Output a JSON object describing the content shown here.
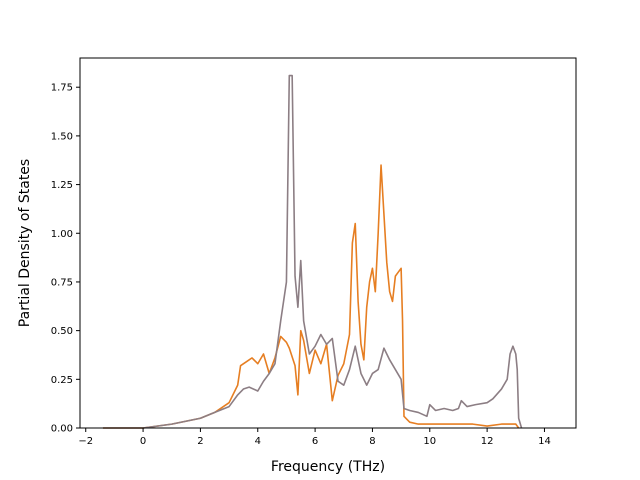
{
  "chart_data": {
    "type": "line",
    "title": "",
    "xlabel": "Frequency (THz)",
    "ylabel": "Partial Density of States",
    "xlim": [
      -2.2,
      15.1
    ],
    "ylim": [
      0.0,
      1.9
    ],
    "grid": false,
    "legend": "none",
    "xticks": [
      -2,
      0,
      2,
      4,
      6,
      8,
      10,
      12,
      14
    ],
    "xtick_labels": [
      "−2",
      "0",
      "2",
      "4",
      "6",
      "8",
      "10",
      "12",
      "14"
    ],
    "yticks": [
      0.0,
      0.25,
      0.5,
      0.75,
      1.0,
      1.25,
      1.5,
      1.75
    ],
    "ytick_labels": [
      "0.00",
      "0.25",
      "0.50",
      "0.75",
      "1.00",
      "1.25",
      "1.50",
      "1.75"
    ],
    "series": [
      {
        "color": "#e67e22",
        "x": [
          -1.4,
          0.0,
          1.0,
          2.0,
          2.5,
          3.0,
          3.3,
          3.4,
          3.6,
          3.8,
          4.0,
          4.2,
          4.4,
          4.6,
          4.8,
          5.0,
          5.1,
          5.3,
          5.4,
          5.5,
          5.6,
          5.8,
          6.0,
          6.2,
          6.4,
          6.6,
          6.8,
          7.0,
          7.2,
          7.3,
          7.4,
          7.5,
          7.6,
          7.7,
          7.8,
          7.9,
          8.0,
          8.1,
          8.2,
          8.3,
          8.4,
          8.5,
          8.6,
          8.7,
          8.8,
          8.9,
          9.0,
          9.05,
          9.1,
          9.3,
          9.6,
          10.0,
          10.5,
          11.0,
          11.5,
          12.0,
          12.5,
          12.8,
          13.0,
          13.1
        ],
        "y": [
          0.0,
          0.0,
          0.02,
          0.05,
          0.08,
          0.13,
          0.22,
          0.32,
          0.34,
          0.36,
          0.33,
          0.38,
          0.28,
          0.36,
          0.47,
          0.44,
          0.41,
          0.32,
          0.17,
          0.5,
          0.45,
          0.28,
          0.4,
          0.33,
          0.43,
          0.14,
          0.27,
          0.33,
          0.48,
          0.95,
          1.05,
          0.65,
          0.43,
          0.35,
          0.62,
          0.75,
          0.82,
          0.7,
          1.0,
          1.35,
          1.1,
          0.85,
          0.7,
          0.65,
          0.78,
          0.8,
          0.82,
          0.55,
          0.06,
          0.03,
          0.02,
          0.02,
          0.02,
          0.02,
          0.02,
          0.01,
          0.02,
          0.02,
          0.02,
          0.0
        ]
      },
      {
        "color": "#8c7e84",
        "x": [
          -1.4,
          0.0,
          1.0,
          2.0,
          2.5,
          3.0,
          3.3,
          3.5,
          3.7,
          4.0,
          4.2,
          4.4,
          4.6,
          4.8,
          5.0,
          5.1,
          5.2,
          5.3,
          5.4,
          5.5,
          5.6,
          5.8,
          6.0,
          6.2,
          6.4,
          6.6,
          6.8,
          7.0,
          7.2,
          7.4,
          7.6,
          7.8,
          8.0,
          8.2,
          8.4,
          8.6,
          8.8,
          9.0,
          9.1,
          9.3,
          9.6,
          9.9,
          10.0,
          10.2,
          10.5,
          10.8,
          11.0,
          11.1,
          11.3,
          11.6,
          12.0,
          12.2,
          12.5,
          12.7,
          12.8,
          12.9,
          13.0,
          13.05,
          13.1,
          13.2
        ],
        "y": [
          0.0,
          0.0,
          0.02,
          0.05,
          0.08,
          0.11,
          0.17,
          0.2,
          0.21,
          0.19,
          0.24,
          0.28,
          0.33,
          0.55,
          0.75,
          1.81,
          1.81,
          0.78,
          0.62,
          0.86,
          0.55,
          0.38,
          0.42,
          0.48,
          0.43,
          0.46,
          0.24,
          0.22,
          0.3,
          0.42,
          0.28,
          0.22,
          0.28,
          0.3,
          0.41,
          0.35,
          0.3,
          0.25,
          0.1,
          0.09,
          0.08,
          0.06,
          0.12,
          0.09,
          0.1,
          0.09,
          0.1,
          0.14,
          0.11,
          0.12,
          0.13,
          0.15,
          0.2,
          0.25,
          0.38,
          0.42,
          0.38,
          0.3,
          0.05,
          0.0
        ]
      }
    ]
  }
}
